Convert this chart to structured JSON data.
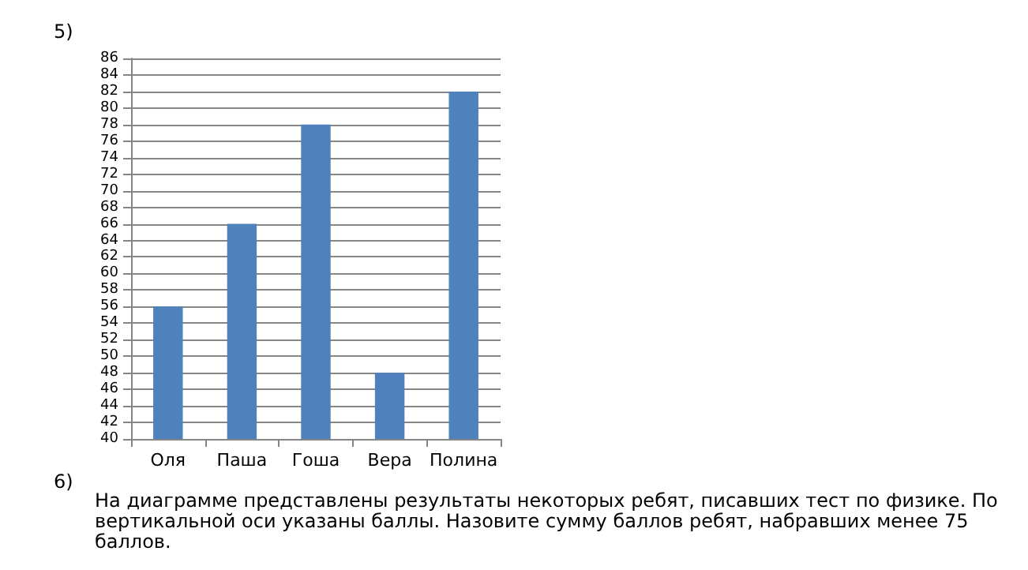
{
  "chart_data": {
    "type": "bar",
    "categories": [
      "Оля",
      "Паша",
      "Гоша",
      "Вера",
      "Полина"
    ],
    "values": [
      56,
      66,
      78,
      48,
      82
    ],
    "color": "#4f81bd",
    "ylim": [
      40,
      86
    ],
    "yticks": [
      40,
      42,
      44,
      46,
      48,
      50,
      52,
      54,
      56,
      58,
      60,
      62,
      64,
      66,
      68,
      70,
      72,
      74,
      76,
      78,
      80,
      82,
      84,
      86
    ],
    "grid": "y",
    "annotations": [
      "5)",
      "6)",
      "На диаграмме представлены результаты некоторых ребят, писавших тест по физике. По вертикальной оси указаны баллы. Назовите сумму баллов ребят, набравших менее 75 баллов."
    ]
  }
}
